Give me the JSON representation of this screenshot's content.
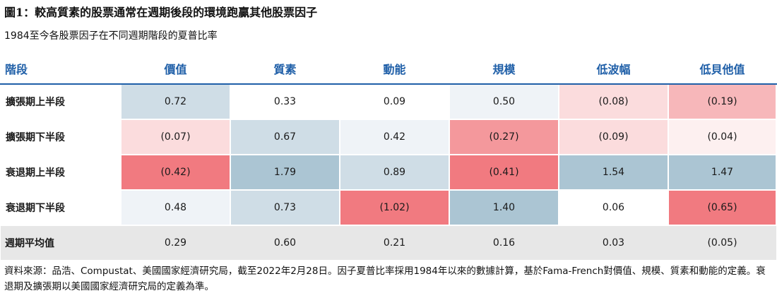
{
  "title": "圖1：較高質素的股票通常在週期後段的環境跑贏其他股票因子",
  "subtitle": "1984至今各股票因子在不同週期階段的夏普比率",
  "chart_data": {
    "type": "heatmap",
    "row_header": "階段",
    "columns": [
      "價值",
      "質素",
      "動能",
      "規模",
      "低波幅",
      "低貝他值"
    ],
    "rows": [
      {
        "label": "擴張期上半段",
        "values": [
          0.72,
          0.33,
          0.09,
          0.5,
          -0.08,
          -0.19
        ],
        "display": [
          "0.72",
          "0.33",
          "0.09",
          "0.50",
          "(0.08)",
          "(0.19)"
        ]
      },
      {
        "label": "擴張期下半段",
        "values": [
          -0.07,
          0.67,
          0.42,
          -0.27,
          -0.09,
          -0.04
        ],
        "display": [
          "(0.07)",
          "0.67",
          "0.42",
          "(0.27)",
          "(0.09)",
          "(0.04)"
        ]
      },
      {
        "label": "衰退期上半段",
        "values": [
          -0.42,
          1.79,
          0.89,
          -0.41,
          1.54,
          1.47
        ],
        "display": [
          "(0.42)",
          "1.79",
          "0.89",
          "(0.41)",
          "1.54",
          "1.47"
        ]
      },
      {
        "label": "衰退期下半段",
        "values": [
          0.48,
          0.73,
          -1.02,
          1.4,
          0.06,
          -0.65
        ],
        "display": [
          "0.48",
          "0.73",
          "(1.02)",
          "1.40",
          "0.06",
          "(0.65)"
        ]
      }
    ],
    "summary_row": {
      "label": "週期平均值",
      "values": [
        0.29,
        0.6,
        0.21,
        0.16,
        0.03,
        -0.05
      ],
      "display": [
        "0.29",
        "0.60",
        "0.21",
        "0.16",
        "0.03",
        "(0.05)"
      ]
    },
    "cell_colors": [
      [
        "#cfdde6",
        "#ffffff",
        "#ffffff",
        "#eff3f7",
        "#fbdcdd",
        "#f7b7ba"
      ],
      [
        "#fbdcdd",
        "#cfdde6",
        "#eff3f7",
        "#f4989c",
        "#fbdcdd",
        "#fdf0f0"
      ],
      [
        "#f17a80",
        "#abc5d3",
        "#cfdde6",
        "#f17a80",
        "#abc5d3",
        "#abc5d3"
      ],
      [
        "#eff3f7",
        "#cfdde6",
        "#f17a80",
        "#abc5d3",
        "#ffffff",
        "#f17a80"
      ]
    ],
    "colors": {
      "header_text": "#1f5fa8",
      "summary_bg": "#e7e7e7"
    }
  },
  "note": "資料來源：品浩、Compustat、美國國家經濟研究局，截至2022年2月28日。因子夏普比率採用1984年以來的數據計算，基於Fama-French對價值、規模、質素和動能的定義。衰退期及擴張期以美國國家經濟研究局的定義為準。"
}
